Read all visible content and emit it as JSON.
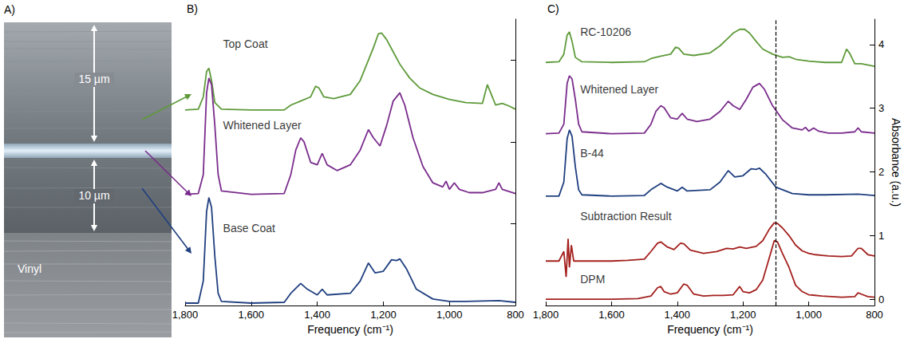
{
  "panel_a": {
    "letter": "A)",
    "layers": [
      {
        "label": "15 µm"
      },
      {
        "label": "10 µm"
      },
      {
        "label": "Vinyl"
      }
    ]
  },
  "chart_data": [
    {
      "letter": "B)",
      "type": "line",
      "x_label": "Frequency (cm⁻¹)",
      "xlim": [
        1800,
        800
      ],
      "xticks": [
        1800,
        1600,
        1400,
        1200,
        1000,
        800
      ],
      "ylim": [
        0,
        3.5
      ],
      "yticks": [
        0,
        1,
        2,
        3
      ],
      "tick_labels": "x",
      "grid": false,
      "series": [
        {
          "name": "Top Coat",
          "color": "#5e9a3a",
          "x": [
            1800,
            1760,
            1745,
            1735,
            1728,
            1720,
            1710,
            1690,
            1600,
            1500,
            1480,
            1450,
            1420,
            1405,
            1395,
            1380,
            1350,
            1300,
            1270,
            1250,
            1230,
            1215,
            1205,
            1190,
            1170,
            1150,
            1120,
            1090,
            1050,
            1000,
            950,
            900,
            885,
            875,
            860,
            840,
            820,
            800
          ],
          "values": [
            2.39,
            2.4,
            2.55,
            2.86,
            2.9,
            2.75,
            2.48,
            2.4,
            2.39,
            2.39,
            2.45,
            2.5,
            2.55,
            2.68,
            2.66,
            2.55,
            2.53,
            2.58,
            2.75,
            2.95,
            3.15,
            3.32,
            3.33,
            3.25,
            3.1,
            2.95,
            2.78,
            2.66,
            2.58,
            2.52,
            2.48,
            2.47,
            2.7,
            2.6,
            2.45,
            2.47,
            2.44,
            2.4
          ]
        },
        {
          "name": "Whitened Layer",
          "color": "#7a2c8c",
          "x": [
            1800,
            1760,
            1745,
            1735,
            1728,
            1720,
            1710,
            1700,
            1690,
            1600,
            1500,
            1480,
            1465,
            1450,
            1440,
            1420,
            1400,
            1385,
            1370,
            1340,
            1300,
            1270,
            1245,
            1230,
            1210,
            1190,
            1170,
            1150,
            1135,
            1110,
            1080,
            1050,
            1020,
            1010,
            1000,
            985,
            970,
            940,
            900,
            860,
            850,
            840,
            800
          ],
          "values": [
            1.36,
            1.37,
            1.6,
            2.6,
            2.78,
            2.7,
            2.2,
            1.6,
            1.4,
            1.36,
            1.37,
            1.6,
            1.9,
            2.05,
            2.0,
            1.75,
            1.72,
            1.86,
            1.72,
            1.65,
            1.72,
            1.9,
            2.15,
            2.05,
            1.95,
            2.2,
            2.5,
            2.6,
            2.45,
            2.05,
            1.7,
            1.5,
            1.45,
            1.52,
            1.42,
            1.5,
            1.42,
            1.38,
            1.38,
            1.42,
            1.5,
            1.42,
            1.37
          ]
        },
        {
          "name": "Base Coat",
          "color": "#1f3f7f",
          "x": [
            1800,
            1760,
            1745,
            1735,
            1728,
            1720,
            1710,
            1700,
            1690,
            1600,
            1500,
            1480,
            1450,
            1430,
            1400,
            1385,
            1370,
            1300,
            1270,
            1245,
            1225,
            1200,
            1175,
            1160,
            1150,
            1130,
            1100,
            1050,
            1000,
            950,
            850,
            800
          ],
          "values": [
            0.03,
            0.03,
            0.3,
            1.15,
            1.32,
            1.2,
            0.6,
            0.15,
            0.05,
            0.03,
            0.04,
            0.15,
            0.27,
            0.2,
            0.13,
            0.2,
            0.13,
            0.15,
            0.3,
            0.52,
            0.4,
            0.42,
            0.56,
            0.55,
            0.57,
            0.45,
            0.2,
            0.08,
            0.05,
            0.05,
            0.06,
            0.04
          ]
        }
      ]
    },
    {
      "letter": "C)",
      "type": "line",
      "x_label": "Frequency (cm⁻¹)",
      "y_label": "Absorbance (a.u.)",
      "xlim": [
        1800,
        800
      ],
      "xticks": [
        1800,
        1600,
        1400,
        1200,
        1000,
        800
      ],
      "ylim": [
        -0.1,
        4.4
      ],
      "yticks": [
        0,
        1,
        2,
        3,
        4
      ],
      "grid": false,
      "reference_lines": [
        {
          "x": 1100,
          "line_style": "dashed"
        }
      ],
      "series": [
        {
          "name": "RC-10206",
          "color": "#5e9a3a",
          "x": [
            1800,
            1760,
            1745,
            1735,
            1728,
            1720,
            1710,
            1690,
            1600,
            1500,
            1480,
            1450,
            1420,
            1405,
            1395,
            1380,
            1350,
            1300,
            1270,
            1250,
            1230,
            1210,
            1195,
            1180,
            1160,
            1140,
            1110,
            1080,
            1060,
            1040,
            1000,
            950,
            900,
            885,
            875,
            860,
            840,
            800
          ],
          "values": [
            3.72,
            3.73,
            3.85,
            4.15,
            4.2,
            4.05,
            3.8,
            3.73,
            3.72,
            3.73,
            3.78,
            3.82,
            3.85,
            3.96,
            3.94,
            3.85,
            3.83,
            3.87,
            3.98,
            4.08,
            4.18,
            4.24,
            4.24,
            4.18,
            4.05,
            3.93,
            3.85,
            3.8,
            3.81,
            3.77,
            3.74,
            3.72,
            3.72,
            3.93,
            3.86,
            3.7,
            3.7,
            3.66
          ]
        },
        {
          "name": "Whitened Layer",
          "color": "#7a2c8c",
          "x": [
            1800,
            1760,
            1745,
            1735,
            1728,
            1720,
            1710,
            1700,
            1690,
            1600,
            1500,
            1480,
            1465,
            1450,
            1440,
            1420,
            1400,
            1385,
            1370,
            1340,
            1300,
            1270,
            1245,
            1230,
            1210,
            1190,
            1170,
            1150,
            1135,
            1110,
            1080,
            1050,
            1020,
            1010,
            1000,
            985,
            970,
            940,
            900,
            860,
            850,
            840,
            800
          ],
          "values": [
            2.6,
            2.61,
            2.75,
            3.39,
            3.51,
            3.46,
            3.14,
            2.75,
            2.63,
            2.6,
            2.61,
            2.75,
            2.95,
            3.04,
            3.01,
            2.85,
            2.83,
            2.92,
            2.83,
            2.79,
            2.83,
            2.95,
            3.11,
            3.04,
            2.98,
            3.14,
            3.33,
            3.39,
            3.3,
            3.04,
            2.82,
            2.69,
            2.66,
            2.7,
            2.64,
            2.69,
            2.64,
            2.61,
            2.61,
            2.63,
            2.69,
            2.63,
            2.61
          ]
        },
        {
          "name": "B-44",
          "color": "#1f3f7f",
          "x": [
            1800,
            1760,
            1745,
            1735,
            1728,
            1720,
            1710,
            1700,
            1690,
            1600,
            1500,
            1480,
            1450,
            1430,
            1400,
            1385,
            1370,
            1300,
            1270,
            1245,
            1225,
            1200,
            1175,
            1160,
            1150,
            1130,
            1100,
            1050,
            1000,
            950,
            850,
            800
          ],
          "values": [
            1.62,
            1.62,
            1.84,
            2.52,
            2.66,
            2.56,
            2.08,
            1.72,
            1.64,
            1.62,
            1.63,
            1.72,
            1.82,
            1.76,
            1.7,
            1.76,
            1.7,
            1.72,
            1.84,
            2.02,
            1.92,
            1.94,
            2.05,
            2.04,
            2.06,
            1.96,
            1.76,
            1.66,
            1.64,
            1.64,
            1.65,
            1.63
          ]
        },
        {
          "name": "Subtraction Result",
          "color": "#a3201d",
          "x": [
            1800,
            1780,
            1760,
            1745,
            1738,
            1732,
            1728,
            1722,
            1715,
            1700,
            1650,
            1600,
            1550,
            1500,
            1480,
            1460,
            1450,
            1430,
            1410,
            1390,
            1380,
            1360,
            1320,
            1280,
            1250,
            1230,
            1210,
            1190,
            1160,
            1140,
            1120,
            1105,
            1095,
            1080,
            1060,
            1040,
            1020,
            1000,
            980,
            960,
            940,
            900,
            870,
            850,
            840,
            820,
            800
          ],
          "values": [
            0.6,
            0.6,
            0.6,
            0.75,
            0.35,
            0.95,
            0.5,
            0.85,
            0.6,
            0.6,
            0.6,
            0.6,
            0.61,
            0.63,
            0.75,
            0.88,
            0.9,
            0.82,
            0.78,
            0.88,
            0.87,
            0.77,
            0.72,
            0.75,
            0.8,
            0.79,
            0.82,
            0.8,
            0.83,
            0.92,
            1.1,
            1.2,
            1.19,
            1.12,
            1.0,
            0.85,
            0.76,
            0.72,
            0.7,
            0.69,
            0.68,
            0.67,
            0.68,
            0.8,
            0.8,
            0.7,
            0.68
          ]
        },
        {
          "name": "DPM",
          "color": "#a3201d",
          "x": [
            1800,
            1750,
            1700,
            1600,
            1520,
            1480,
            1460,
            1450,
            1440,
            1420,
            1400,
            1380,
            1370,
            1350,
            1320,
            1290,
            1260,
            1230,
            1210,
            1200,
            1180,
            1160,
            1140,
            1120,
            1105,
            1095,
            1080,
            1060,
            1040,
            1020,
            1000,
            960,
            930,
            900,
            860,
            850,
            840,
            820,
            800
          ],
          "values": [
            0,
            0,
            0,
            0,
            0.01,
            0.05,
            0.18,
            0.2,
            0.12,
            0.08,
            0.1,
            0.24,
            0.22,
            0.08,
            0.05,
            0.06,
            0.06,
            0.07,
            0.2,
            0.12,
            0.1,
            0.15,
            0.3,
            0.65,
            0.92,
            0.9,
            0.72,
            0.5,
            0.22,
            0.12,
            0.07,
            0.05,
            0.04,
            0.03,
            0.04,
            0.1,
            0.08,
            0.04,
            0.03
          ]
        }
      ]
    }
  ]
}
